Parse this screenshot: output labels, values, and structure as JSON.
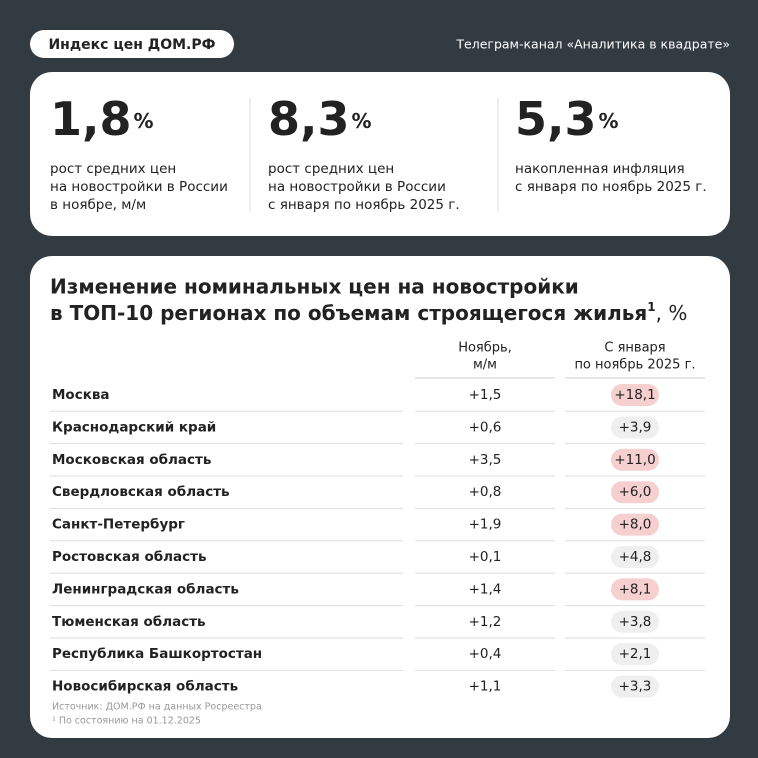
{
  "header": {
    "badge": "Индекс цен ДОМ.РФ",
    "channel": "Телеграм-канал «Аналитика в квадрате»"
  },
  "stats": [
    {
      "value": "1,8",
      "unit": "%",
      "lines": [
        "рост средних цен",
        "на новостройки в России",
        "в ноябре, м/м"
      ]
    },
    {
      "value": "8,3",
      "unit": "%",
      "lines": [
        "рост средних цен",
        "на новостройки в России",
        "с января по ноябрь 2025 г."
      ]
    },
    {
      "value": "5,3",
      "unit": "%",
      "lines": [
        "накопленная инфляция",
        "с января по ноябрь 2025 г."
      ]
    }
  ],
  "table": {
    "title_lines": [
      "Изменение номинальных цен на новостройки",
      "в ТОП-10 регионах по объемам строящегося жилья"
    ],
    "title_sup": "1",
    "title_suffix": ", %",
    "columns": [
      [
        "Ноябрь,",
        "м/м"
      ],
      [
        "С января",
        "по ноябрь 2025 г."
      ]
    ],
    "rows": [
      {
        "region": "Москва",
        "november": "+1,5",
        "since_january": "+18,1",
        "color": "#f6cfcf"
      },
      {
        "region": "Краснодарский край",
        "november": "+0,6",
        "since_january": "+3,9",
        "color": "#efefef"
      },
      {
        "region": "Московская область",
        "november": "+3,5",
        "since_january": "+11,0",
        "color": "#f6cfcf"
      },
      {
        "region": "Свердловская область",
        "november": "+0,8",
        "since_january": "+6,0",
        "color": "#f6cfcf"
      },
      {
        "region": "Санкт-Петербург",
        "november": "+1,9",
        "since_january": "+8,0",
        "color": "#f6cfcf"
      },
      {
        "region": "Ростовская область",
        "november": "+0,1",
        "since_january": "+4,8",
        "color": "#efefef"
      },
      {
        "region": "Ленинградская область",
        "november": "+1,4",
        "since_january": "+8,1",
        "color": "#f6cfcf"
      },
      {
        "region": "Тюменская область",
        "november": "+1,2",
        "since_january": "+3,8",
        "color": "#efefef"
      },
      {
        "region": "Республика Башкортостан",
        "november": "+0,4",
        "since_january": "+2,1",
        "color": "#efefef"
      },
      {
        "region": "Новосибирская область",
        "november": "+1,1",
        "since_january": "+3,3",
        "color": "#efefef"
      }
    ],
    "footnotes": [
      "Источник: ДОМ.РФ на данных Росреестра",
      "¹ По состоянию на 01.12.2025"
    ]
  }
}
